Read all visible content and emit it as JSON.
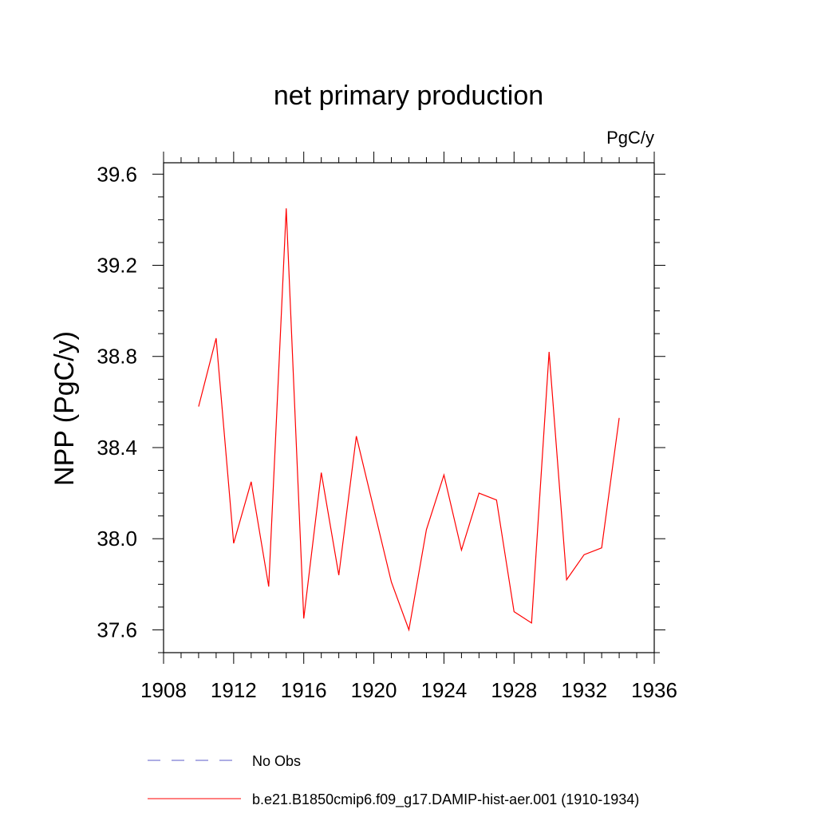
{
  "chart_data": {
    "type": "line",
    "title": "net primary production",
    "units_label": "PgC/y",
    "ylabel": "NPP  (PgC/y)",
    "xlabel": "",
    "xlim": [
      1908,
      1936
    ],
    "ylim": [
      37.5,
      39.65
    ],
    "x_ticks": [
      "1908",
      "1912",
      "1916",
      "1920",
      "1924",
      "1928",
      "1932",
      "1936"
    ],
    "y_ticks": [
      "37.6",
      "38.0",
      "38.4",
      "38.8",
      "39.2",
      "39.6"
    ],
    "grid": false,
    "legend_position": "bottom-left",
    "series": [
      {
        "name": "No Obs",
        "color": "#5b5bc8",
        "style": "dashed",
        "x": [],
        "y": []
      },
      {
        "name": "b.e21.B1850cmip6.f09_g17.DAMIP-hist-aer.001 (1910-1934)",
        "color": "#ff0000",
        "style": "solid",
        "x": [
          1910,
          1911,
          1912,
          1913,
          1914,
          1915,
          1916,
          1917,
          1918,
          1919,
          1920,
          1921,
          1922,
          1923,
          1924,
          1925,
          1926,
          1927,
          1928,
          1929,
          1930,
          1931,
          1932,
          1933,
          1934
        ],
        "y": [
          38.58,
          38.88,
          37.98,
          38.25,
          37.79,
          39.45,
          37.65,
          38.29,
          37.84,
          38.45,
          38.13,
          37.81,
          37.6,
          38.04,
          38.28,
          37.95,
          38.2,
          38.17,
          37.68,
          37.63,
          38.82,
          37.82,
          37.93,
          37.96,
          38.53
        ]
      }
    ]
  }
}
